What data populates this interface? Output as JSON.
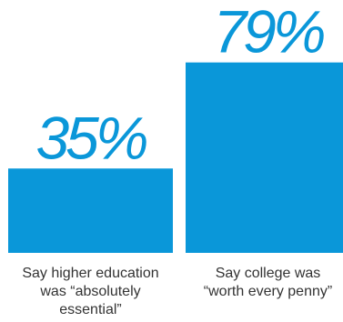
{
  "chart_data": {
    "type": "bar",
    "categories": [
      [
        "Say higher education",
        "was “absolutely",
        "essential”"
      ],
      [
        "Say college was",
        "“worth every penny”"
      ]
    ],
    "values": [
      35,
      79
    ],
    "value_labels": [
      "35%",
      "79%"
    ],
    "ylim": [
      0,
      100
    ],
    "grid": false,
    "colors": {
      "bar": "#0a97d9",
      "label": "#333333"
    }
  }
}
